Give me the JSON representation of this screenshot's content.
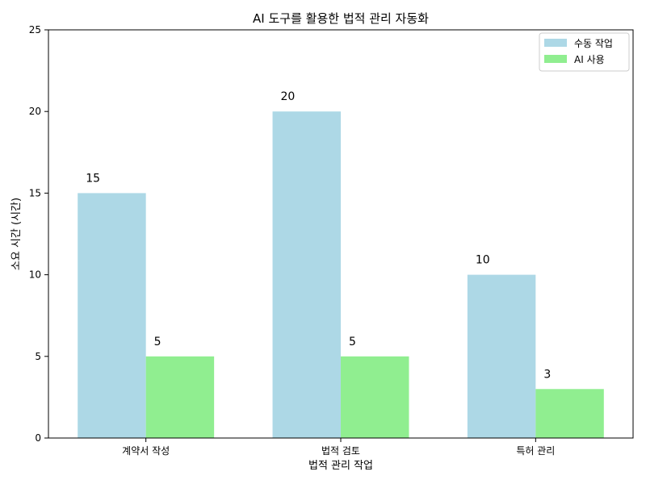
{
  "chart_data": {
    "type": "bar",
    "title": "AI 도구를 활용한 법적 관리 자동화",
    "xlabel": "법적 관리 작업",
    "ylabel": "소요 시간 (시간)",
    "categories": [
      "계약서 작성",
      "법적 검토",
      "특허 관리"
    ],
    "series": [
      {
        "name": "수동 작업",
        "values": [
          15,
          20,
          10
        ],
        "color": "#add8e6"
      },
      {
        "name": "AI 사용",
        "values": [
          5,
          5,
          3
        ],
        "color": "#90ee90"
      }
    ],
    "ylim": [
      0,
      25
    ],
    "yticks": [
      0,
      5,
      10,
      15,
      20,
      25
    ],
    "grid": false,
    "legend_position": "top-right"
  }
}
